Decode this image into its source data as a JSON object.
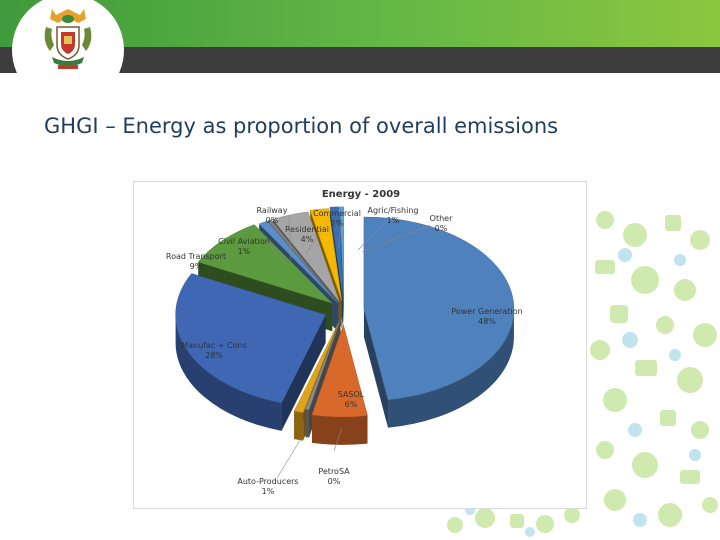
{
  "slide": {
    "title": "GHGI – Energy as proportion of overall emissions"
  },
  "colors": {
    "banner_green": "#5aaf45",
    "banner_dark": "#3d3d3d",
    "title_text": "#1f3d5e"
  },
  "chart_data": {
    "type": "pie",
    "title": "Energy - 2009",
    "three_d": true,
    "exploded": true,
    "legend": "none",
    "slices": [
      {
        "name": "Power Generation",
        "label": "48%",
        "value": 48,
        "color": "#4f81bd"
      },
      {
        "name": "SASOL",
        "label": "6%",
        "value": 6,
        "color": "#d9692b"
      },
      {
        "name": "PetroSA",
        "label": "0%",
        "value": 0.4,
        "color": "#8b8b8b"
      },
      {
        "name": "Auto-Producers",
        "label": "1%",
        "value": 1,
        "color": "#e0a31c"
      },
      {
        "name": "Manufac + Cons",
        "label": "28%",
        "value": 28,
        "color": "#3f67b3"
      },
      {
        "name": "Road Transport",
        "label": "9%",
        "value": 9,
        "color": "#5b9a3e"
      },
      {
        "name": "Civil Aviation",
        "label": "1%",
        "value": 1,
        "color": "#5b8fcc"
      },
      {
        "name": "Railway",
        "label": "0%",
        "value": 0.4,
        "color": "#7f7f7f"
      },
      {
        "name": "Residential",
        "label": "4%",
        "value": 4,
        "color": "#a5a5a5"
      },
      {
        "name": "Commercial",
        "label": "2%",
        "value": 2,
        "color": "#f5b800"
      },
      {
        "name": "Agric/Fishing",
        "label": "1%",
        "value": 1,
        "color": "#3a6fb0"
      },
      {
        "name": "Other",
        "label": "0%",
        "value": 0.4,
        "color": "#5aa6d6"
      }
    ]
  }
}
